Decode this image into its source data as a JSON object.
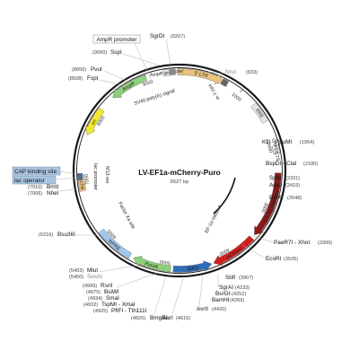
{
  "plasmid": {
    "name": "LV-EF1a-mCherry-Puro",
    "size_label": "9527 bp",
    "length": 9527
  },
  "ticks": [
    {
      "pos": 1000,
      "label": "1000"
    },
    {
      "pos": 2000,
      "label": "2000"
    },
    {
      "pos": 3000,
      "label": "3000"
    },
    {
      "pos": 4000,
      "label": "4000"
    },
    {
      "pos": 5000,
      "label": "5000"
    },
    {
      "pos": 6000,
      "label": "6000"
    },
    {
      "pos": 7000,
      "label": "7000"
    },
    {
      "pos": 8000,
      "label": "8000"
    },
    {
      "pos": 9000,
      "label": "9000"
    }
  ],
  "features": [
    {
      "name": "5' LTR",
      "start": 9500,
      "end": 700,
      "color": "#e8c37e",
      "dir": 1
    },
    {
      "name": "RRE",
      "start": 1280,
      "end": 1600,
      "color": "#e5e5e5",
      "dir": 0
    },
    {
      "name": "cPPT/CTS",
      "start": 2000,
      "end": 2120,
      "color": "#e5e5e5",
      "dir": 0
    },
    {
      "name": "EF-1α promoter",
      "start": 2420,
      "end": 3460,
      "color": "#8b1a1a",
      "dir": 1
    },
    {
      "name": "mCherry",
      "start": 3520,
      "end": 4230,
      "color": "#d11f1f",
      "dir": 1
    },
    {
      "name": "IRES",
      "start": 4260,
      "end": 4860,
      "color": "#2f6db8",
      "dir": -1
    },
    {
      "name": "PuroR",
      "start": 4900,
      "end": 5500,
      "color": "#8ed07a",
      "dir": 1
    },
    {
      "name": "WPRE",
      "start": 5560,
      "end": 6150,
      "color": "#9fc7ec",
      "dir": 0
    },
    {
      "name": "3' LTR",
      "start": 6830,
      "end": 7080,
      "color": "#e8c37e",
      "dir": 0
    },
    {
      "name": "ori",
      "start": 7700,
      "end": 8150,
      "color": "#f2ea2a",
      "dir": -1
    },
    {
      "name": "AmpR",
      "start": 8400,
      "end": 9000,
      "color": "#8ed07a",
      "dir": -1
    },
    {
      "name": "AmpR promoter",
      "start": 9280,
      "end": 9380,
      "color": "#e5e5e5",
      "dir": 0
    }
  ],
  "small_boxes": [
    {
      "name": "SV40 poly(A) signal",
      "pos": 9420,
      "color": "#888888"
    },
    {
      "name": "HIV-1 Ψ",
      "pos": 720,
      "color": "#666666"
    }
  ],
  "inner_labels": [
    {
      "text": "HIV-1 Ψ"
    },
    {
      "text": "SV40 poly(A) signal"
    },
    {
      "text": "Factor Xa site"
    },
    {
      "text": "lac promoter"
    },
    {
      "text": "M13 rev"
    },
    {
      "text": "EF-1α intron A"
    }
  ],
  "sites": [
    {
      "name": "SgrDI",
      "pos": "(9207)",
      "gray": false
    },
    {
      "name": "NruI",
      "pos": "(833)",
      "gray": true
    },
    {
      "name": "KflI - PpuMI",
      "pos": "(1954)",
      "gray": false
    },
    {
      "name": "BspDI - ClaI",
      "pos": "(2180)",
      "gray": false
    },
    {
      "name": "SphI",
      "pos": "(2331)",
      "gray": false
    },
    {
      "name": "AgeI",
      "pos": "(2415)",
      "gray": false
    },
    {
      "name": "BstXI",
      "pos": "(2648)",
      "gray": false
    },
    {
      "name": "PaeR7I - XhoI",
      "pos": "(3306)",
      "gray": false
    },
    {
      "name": "EcoRI",
      "pos": "(3535)",
      "gray": false
    },
    {
      "name": "SbfI",
      "pos": "(3907)",
      "gray": false
    },
    {
      "name": "SgrAI",
      "pos": "(4233)",
      "gray": false
    },
    {
      "name": "BsrGI",
      "pos": "(4252)",
      "gray": false
    },
    {
      "name": "BamHI",
      "pos": "(4269)",
      "gray": false
    },
    {
      "name": "AvrII",
      "pos": "(4420)",
      "gray": false
    },
    {
      "name": "AarI",
      "pos": "(4616)",
      "gray": false
    },
    {
      "name": "BmgBI",
      "pos": "(4820)",
      "gray": false
    },
    {
      "name": "PflFI - Tth111I",
      "pos": "(4925)",
      "gray": false
    },
    {
      "name": "TspMI - XmaI",
      "pos": "(4932)",
      "gray": false
    },
    {
      "name": "SmaI",
      "pos": "(4934)",
      "gray": false
    },
    {
      "name": "BsiWI",
      "pos": "(4975)",
      "gray": false
    },
    {
      "name": "RsrII",
      "pos": "(4999)",
      "gray": false
    },
    {
      "name": "SexAI",
      "pos": "(5450)",
      "gray": true
    },
    {
      "name": "MluI",
      "pos": "(5403)",
      "gray": false
    },
    {
      "name": "Bsu36I",
      "pos": "(6216)",
      "gray": false
    },
    {
      "name": "NheI",
      "pos": "(7006)",
      "gray": false
    },
    {
      "name": "BmtI",
      "pos": "(7010)",
      "gray": false
    },
    {
      "name": "FspI",
      "pos": "(8508)",
      "gray": false
    },
    {
      "name": "PvuI",
      "pos": "(8656)",
      "gray": false
    },
    {
      "name": "SspI",
      "pos": "(9090)",
      "gray": false
    },
    {
      "name": "AmpR promoter",
      "pos": "",
      "gray": false
    }
  ],
  "binding_labels": [
    {
      "text": "CAP binding site"
    },
    {
      "text": "lac operator"
    }
  ]
}
